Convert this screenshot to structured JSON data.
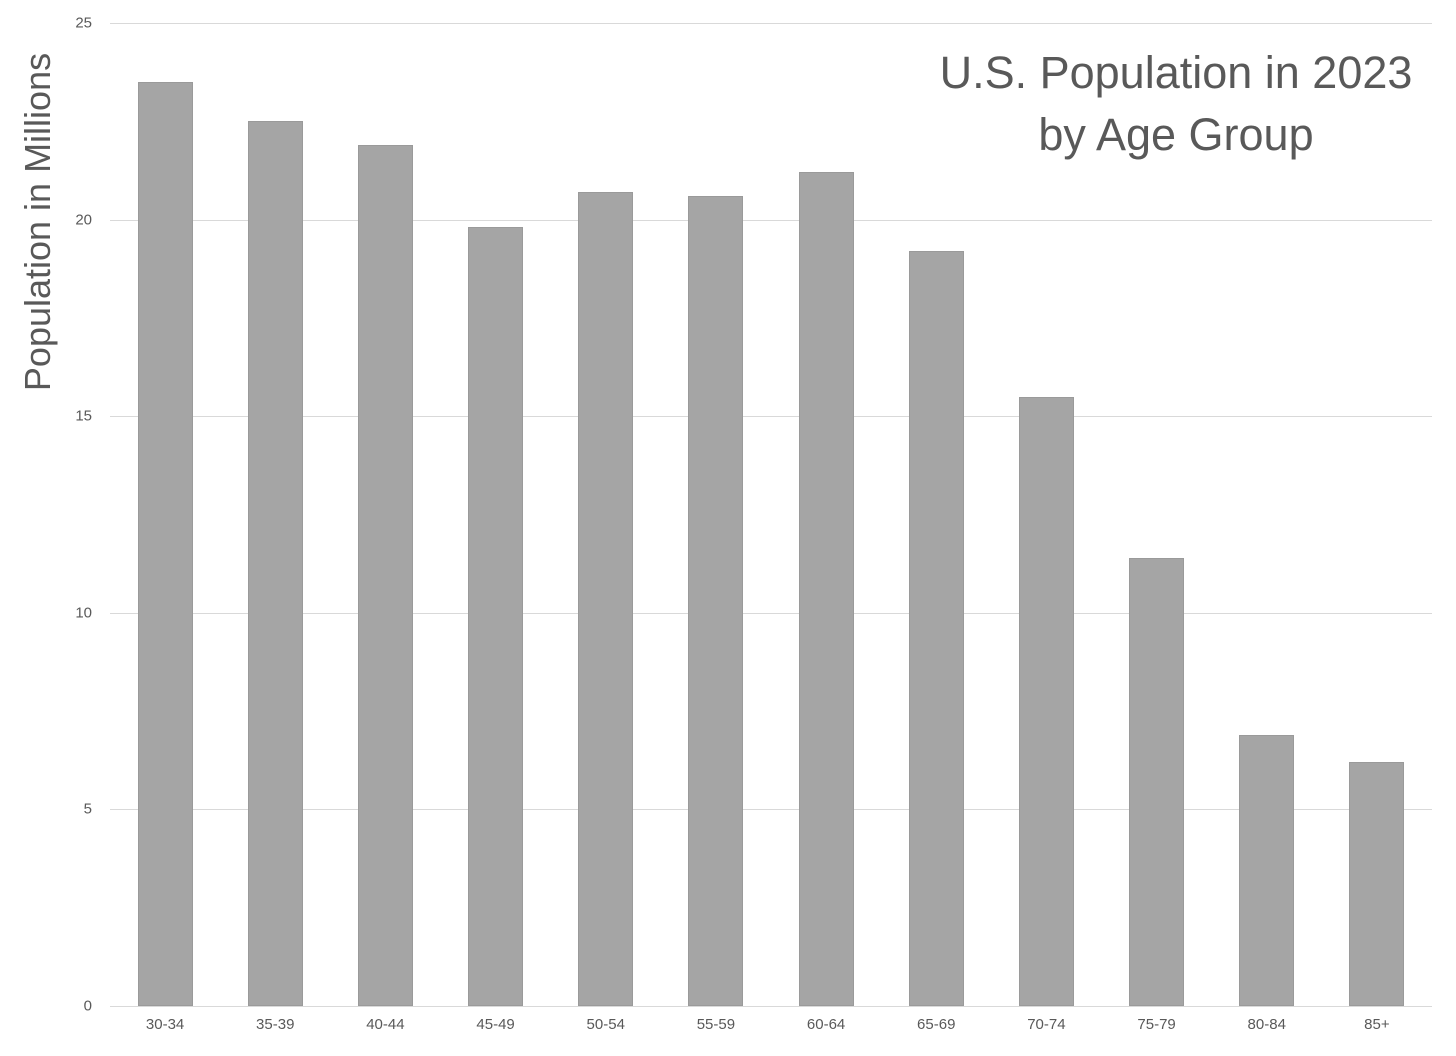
{
  "chart_data": {
    "type": "bar",
    "title": "U.S. Population in 2023 by Age Group",
    "title_lines": [
      "U.S. Population in 2023",
      "by Age Group"
    ],
    "xlabel": "",
    "ylabel": "Population in Millions",
    "ylim": [
      0,
      25
    ],
    "yticks": [
      0,
      5,
      10,
      15,
      20,
      25
    ],
    "grid": true,
    "legend": null,
    "bar_color": "#a5a5a5",
    "categories": [
      "30-34",
      "35-39",
      "40-44",
      "45-49",
      "50-54",
      "55-59",
      "60-64",
      "65-69",
      "70-74",
      "75-79",
      "80-84",
      "85+"
    ],
    "series": [
      {
        "name": "Population (millions)",
        "values": [
          23.5,
          22.5,
          21.9,
          19.8,
          20.7,
          20.6,
          21.2,
          19.2,
          15.5,
          11.4,
          6.9,
          6.2
        ]
      }
    ]
  }
}
